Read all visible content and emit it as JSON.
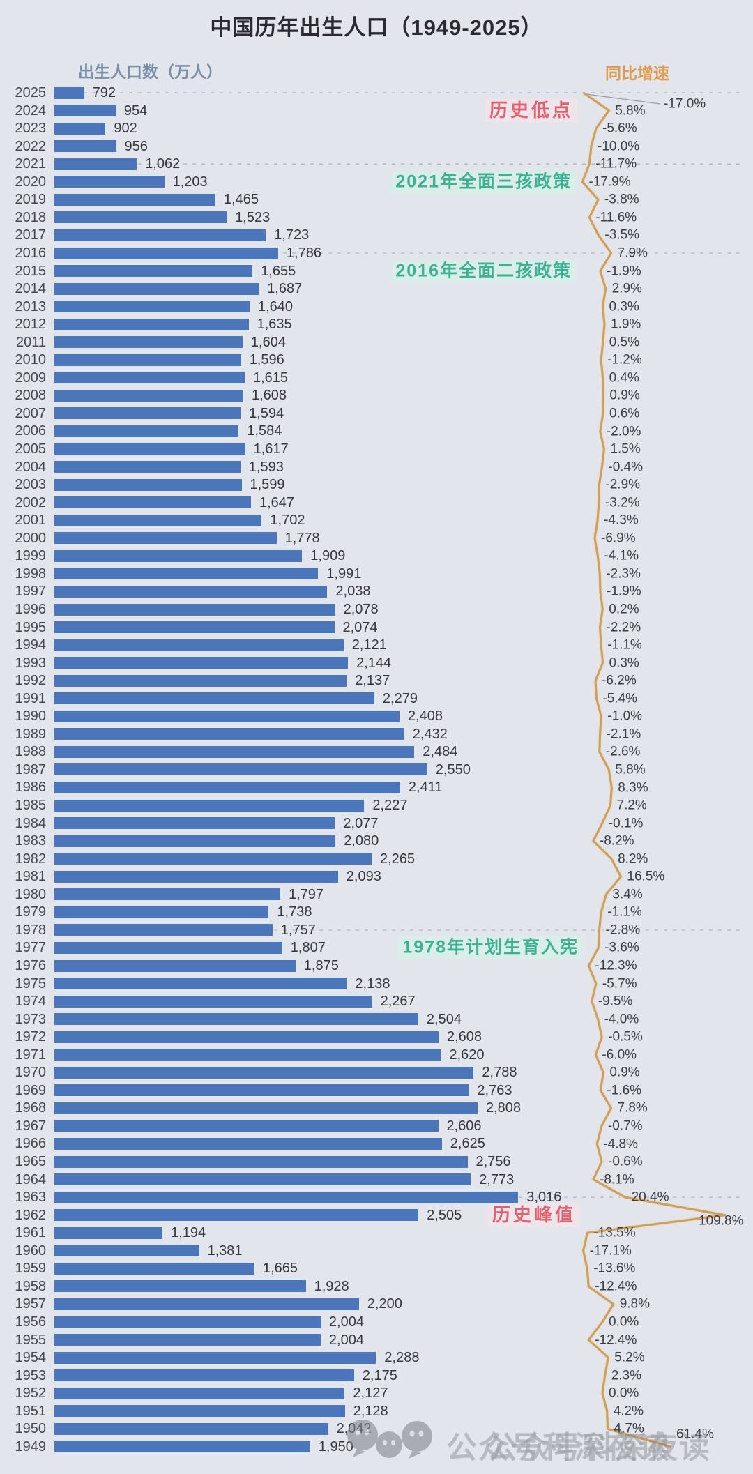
{
  "title": "中国历年出生人口（1949-2025）",
  "left_axis_label": "出生人口数（万人）",
  "right_axis_label": "同比增速",
  "watermark": "公众号科深夜读",
  "colors": {
    "background": "#e3e5ed",
    "bar": "#4c76ba",
    "line": "#c8a06a",
    "line_halo": "#ece0cb",
    "teal_annotation": "#3fb193",
    "red_annotation": "#e0616f",
    "left_axis_label": "#7a8fa8",
    "right_axis_label": "#dd9b4f",
    "gridline": "rgba(130,132,146,0.5)"
  },
  "annotations": [
    {
      "text": "历史低点",
      "style": "red",
      "year": 2024
    },
    {
      "text": "2021年全面三孩政策",
      "style": "teal",
      "year": 2020
    },
    {
      "text": "2016年全面二孩政策",
      "style": "teal",
      "year": 2015
    },
    {
      "text": "1978年计划生育入宪",
      "style": "teal",
      "year": 1977
    },
    {
      "text": "历史峰值",
      "style": "red",
      "year": 1962
    }
  ],
  "gridline_years": [
    2025,
    2021,
    2016,
    1978,
    1963
  ],
  "chart_data": {
    "type": "bar",
    "orientation": "horizontal",
    "title": "中国历年出生人口（1949-2025）",
    "xlabel": "出生人口数（万人）",
    "unit": "万人",
    "categories": [
      2025,
      2024,
      2023,
      2022,
      2021,
      2020,
      2019,
      2018,
      2017,
      2016,
      2015,
      2014,
      2013,
      2012,
      2011,
      2010,
      2009,
      2008,
      2007,
      2006,
      2005,
      2004,
      2003,
      2002,
      2001,
      2000,
      1999,
      1998,
      1997,
      1996,
      1995,
      1994,
      1993,
      1992,
      1991,
      1990,
      1989,
      1988,
      1987,
      1986,
      1985,
      1984,
      1983,
      1982,
      1981,
      1980,
      1979,
      1978,
      1977,
      1976,
      1975,
      1974,
      1973,
      1972,
      1971,
      1970,
      1969,
      1968,
      1967,
      1966,
      1965,
      1964,
      1963,
      1962,
      1961,
      1960,
      1959,
      1958,
      1957,
      1956,
      1955,
      1954,
      1953,
      1952,
      1951,
      1950,
      1949
    ],
    "series": [
      {
        "name": "出生人口数(万人)",
        "type": "bar",
        "values": [
          792,
          954,
          902,
          956,
          1062,
          1203,
          1465,
          1523,
          1723,
          1786,
          1655,
          1687,
          1640,
          1635,
          1604,
          1596,
          1615,
          1608,
          1594,
          1584,
          1617,
          1593,
          1599,
          1647,
          1702,
          1778,
          1909,
          1991,
          2038,
          2078,
          2074,
          2121,
          2144,
          2137,
          2279,
          2408,
          2432,
          2484,
          2550,
          2411,
          2227,
          2077,
          2080,
          2265,
          2093,
          1797,
          1738,
          1757,
          1807,
          1875,
          2138,
          2267,
          2504,
          2608,
          2620,
          2788,
          2763,
          2808,
          2606,
          2625,
          2756,
          2773,
          3016,
          2505,
          1194,
          1381,
          1665,
          1928,
          2200,
          2004,
          2004,
          2288,
          2175,
          2127,
          2128,
          2042,
          1950
        ]
      },
      {
        "name": "同比增速(%)",
        "type": "line",
        "values": [
          -17.0,
          5.8,
          -5.6,
          -10.0,
          -11.7,
          -17.9,
          -3.8,
          -11.6,
          -3.5,
          7.9,
          -1.9,
          2.9,
          0.3,
          1.9,
          0.5,
          -1.2,
          0.4,
          0.9,
          0.6,
          -2.0,
          1.5,
          -0.4,
          -2.9,
          -3.2,
          -4.3,
          -6.9,
          -4.1,
          -2.3,
          -1.9,
          0.2,
          -2.2,
          -1.1,
          0.3,
          -6.2,
          -5.4,
          -1.0,
          -2.1,
          -2.6,
          5.8,
          8.3,
          7.2,
          -0.1,
          -8.2,
          8.2,
          16.5,
          3.4,
          -1.1,
          -2.8,
          -3.6,
          -12.3,
          -5.7,
          -9.5,
          -4.0,
          -0.5,
          -6.0,
          0.9,
          -1.6,
          7.8,
          -0.7,
          -4.8,
          -0.6,
          -8.1,
          20.4,
          109.8,
          -13.5,
          -17.1,
          -13.6,
          -12.4,
          9.8,
          0.0,
          -12.4,
          5.2,
          2.3,
          0.0,
          4.2,
          4.7,
          61.4
        ]
      }
    ],
    "value_labels": [
      "792",
      "954",
      "902",
      "956",
      "1,062",
      "1,203",
      "1,465",
      "1,523",
      "1,723",
      "1,786",
      "1,655",
      "1,687",
      "1,640",
      "1,635",
      "1,604",
      "1,596",
      "1,615",
      "1,608",
      "1,594",
      "1,584",
      "1,617",
      "1,593",
      "1,599",
      "1,647",
      "1,702",
      "1,778",
      "1,909",
      "1,991",
      "2,038",
      "2,078",
      "2,074",
      "2,121",
      "2,144",
      "2,137",
      "2,279",
      "2,408",
      "2,432",
      "2,484",
      "2,550",
      "2,411",
      "2,227",
      "2,077",
      "2,080",
      "2,265",
      "2,093",
      "1,797",
      "1,738",
      "1,757",
      "1,807",
      "1,875",
      "2,138",
      "2,267",
      "2,504",
      "2,608",
      "2,620",
      "2,788",
      "2,763",
      "2,808",
      "2,606",
      "2,625",
      "2,756",
      "2,773",
      "3,016",
      "2,505",
      "1,194",
      "1,381",
      "1,665",
      "1,928",
      "2,200",
      "2,004",
      "2,004",
      "2,288",
      "2,175",
      "2,127",
      "2,128",
      "2,042",
      "1,950"
    ],
    "growth_labels": [
      "-17.0%",
      "5.8%",
      "-5.6%",
      "-10.0%",
      "-11.7%",
      "-17.9%",
      "-3.8%",
      "-11.6%",
      "-3.5%",
      "7.9%",
      "-1.9%",
      "2.9%",
      "0.3%",
      "1.9%",
      "0.5%",
      "-1.2%",
      "0.4%",
      "0.9%",
      "0.6%",
      "-2.0%",
      "1.5%",
      "-0.4%",
      "-2.9%",
      "-3.2%",
      "-4.3%",
      "-6.9%",
      "-4.1%",
      "-2.3%",
      "-1.9%",
      "0.2%",
      "-2.2%",
      "-1.1%",
      "0.3%",
      "-6.2%",
      "-5.4%",
      "-1.0%",
      "-2.1%",
      "-2.6%",
      "5.8%",
      "8.3%",
      "7.2%",
      "-0.1%",
      "-8.2%",
      "8.2%",
      "16.5%",
      "3.4%",
      "-1.1%",
      "-2.8%",
      "-3.6%",
      "-12.3%",
      "-5.7%",
      "-9.5%",
      "-4.0%",
      "-0.5%",
      "-6.0%",
      "0.9%",
      "-1.6%",
      "7.8%",
      "-0.7%",
      "-4.8%",
      "-0.6%",
      "-8.1%",
      "20.4%",
      "109.8%",
      "-13.5%",
      "-17.1%",
      "-13.6%",
      "-12.4%",
      "9.8%",
      "0.0%",
      "-12.4%",
      "5.2%",
      "2.3%",
      "0.0%",
      "4.2%",
      "4.7%",
      "61.4%"
    ]
  }
}
